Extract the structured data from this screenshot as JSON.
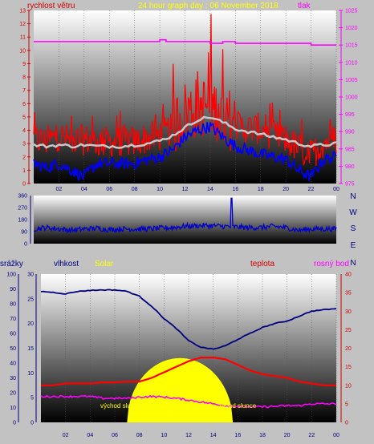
{
  "header": {
    "title": "24 hour graph day : 06 November 2018",
    "left_label": "rychlost větru",
    "right_label": "tlak"
  },
  "panel3_labels": {
    "rain": "srážky",
    "humidity": "vlhkost",
    "solar": "Solar",
    "temperature": "teplota",
    "dewpoint": "rosný bod",
    "sunrise": "východ slunce",
    "sunset": "západ slunce"
  },
  "colors": {
    "background": "#c2c2c2",
    "plot_top": "#ffffff",
    "plot_bottom": "#000000",
    "wind": "#ff0000",
    "wind_avg": "#c0c0c0",
    "direction": "#0000cc",
    "pressure": "#ff00ff",
    "humidity": "#000080",
    "temperature": "#ff0000",
    "dewpoint": "#ff00ff",
    "solar": "#ffff00",
    "title": "#ffff00"
  },
  "chart_data": [
    {
      "type": "line",
      "x_ticks": [
        "02",
        "04",
        "06",
        "08",
        "10",
        "12",
        "14",
        "16",
        "18",
        "20",
        "22",
        "00"
      ],
      "y_left_ticks": [
        "0",
        "1",
        "2",
        "3",
        "4",
        "5",
        "6",
        "7",
        "8",
        "9",
        "10",
        "11",
        "12",
        "13"
      ],
      "y_right_ticks": [
        "975",
        "980",
        "985",
        "990",
        "995",
        "1000",
        "1005",
        "1010",
        "1015",
        "1020",
        "1025"
      ],
      "ylim_left": [
        0,
        13
      ],
      "ylim_right": [
        975,
        1025
      ],
      "series": [
        {
          "name": "rychlost větru",
          "axis": "left",
          "style": "spiky",
          "x": [
            0,
            1,
            2,
            3,
            4,
            5,
            6,
            7,
            8,
            9,
            10,
            11,
            12,
            13,
            14,
            15,
            16,
            17,
            18,
            19,
            20,
            21,
            22,
            23,
            24
          ],
          "values": [
            3.2,
            3.0,
            3.5,
            3.0,
            3.2,
            3.0,
            3.0,
            3.1,
            3.0,
            3.3,
            3.5,
            4.0,
            5.2,
            5.5,
            5.6,
            5.0,
            4.3,
            4.0,
            4.0,
            3.5,
            3.2,
            2.5,
            2.0,
            3.0,
            3.2
          ]
        },
        {
          "name": "average",
          "axis": "left",
          "style": "smooth",
          "x": [
            0,
            1,
            2,
            3,
            4,
            5,
            6,
            7,
            8,
            9,
            10,
            11,
            12,
            13,
            14,
            15,
            16,
            17,
            18,
            19,
            20,
            21,
            22,
            23,
            24
          ],
          "values": [
            2.9,
            2.8,
            2.9,
            2.8,
            2.9,
            2.8,
            2.8,
            2.8,
            2.9,
            3.0,
            3.2,
            3.6,
            4.2,
            4.8,
            5.0,
            4.6,
            4.1,
            3.9,
            3.7,
            3.5,
            3.3,
            3.0,
            2.8,
            2.9,
            3.0
          ]
        },
        {
          "name": "gust",
          "axis": "left",
          "style": "lower",
          "x": [
            0,
            1,
            2,
            3,
            4,
            5,
            6,
            7,
            8,
            9,
            10,
            11,
            12,
            13,
            14,
            15,
            16,
            17,
            18,
            19,
            20,
            21,
            22,
            23,
            24
          ],
          "values": [
            1.5,
            1.2,
            1.5,
            1.0,
            0.5,
            1.5,
            1.5,
            1.5,
            1.5,
            1.8,
            2.0,
            2.5,
            3.5,
            4.0,
            4.3,
            3.5,
            2.8,
            2.5,
            2.2,
            2.0,
            1.8,
            1.0,
            0.5,
            1.8,
            2.0
          ]
        },
        {
          "name": "tlak",
          "axis": "right",
          "style": "step",
          "x": [
            0,
            2,
            4,
            6,
            8,
            9,
            10,
            10.5,
            11,
            12,
            13,
            14,
            15,
            16,
            18,
            20,
            22,
            23,
            24
          ],
          "values": [
            1016,
            1016,
            1016,
            1016,
            1016,
            1016,
            1016.5,
            1016,
            1016,
            1016,
            1016,
            1015.5,
            1016,
            1015.5,
            1015.5,
            1015.5,
            1015,
            1015,
            1015
          ]
        }
      ]
    },
    {
      "type": "line",
      "x_ticks": [],
      "y_left_ticks": [
        "0",
        "90",
        "180",
        "270",
        "360"
      ],
      "y_right_labels": [
        "N",
        "W",
        "S",
        "E",
        "N"
      ],
      "ylim": [
        0,
        360
      ],
      "series": [
        {
          "name": "direction",
          "style": "noisy",
          "x": [
            0,
            1,
            2,
            3,
            4,
            5,
            6,
            7,
            8,
            9,
            10,
            11,
            12,
            13,
            14,
            15,
            16,
            17,
            18,
            19,
            20,
            21,
            22,
            23,
            24
          ],
          "values": [
            110,
            120,
            110,
            100,
            110,
            115,
            105,
            110,
            110,
            110,
            115,
            120,
            130,
            135,
            135,
            130,
            125,
            120,
            120,
            130,
            120,
            100,
            110,
            110,
            110
          ]
        }
      ]
    },
    {
      "type": "line",
      "x_ticks": [
        "02",
        "04",
        "06",
        "08",
        "10",
        "12",
        "14",
        "16",
        "18",
        "20",
        "22",
        "00"
      ],
      "y_rain_ticks": [
        "0",
        "10",
        "20",
        "30",
        "40",
        "50",
        "60",
        "70",
        "80",
        "90",
        "100"
      ],
      "y_humidity_ticks": [
        "0",
        "5",
        "10",
        "15",
        "20",
        "25",
        "30"
      ],
      "y_right_ticks": [
        "0",
        "5",
        "10",
        "15",
        "20",
        "25",
        "30",
        "35",
        "40"
      ],
      "ylim_rain": [
        0,
        100
      ],
      "ylim_humidity": [
        0,
        30
      ],
      "ylim_right": [
        0,
        40
      ],
      "series": [
        {
          "name": "vlhkost",
          "axis": "humidity",
          "style": "step",
          "x": [
            0,
            1,
            2,
            3,
            4,
            5,
            6,
            7,
            8,
            9,
            10,
            11,
            12,
            13,
            14,
            15,
            16,
            17,
            18,
            19,
            20,
            21,
            22,
            23,
            24
          ],
          "values": [
            26.5,
            26.3,
            26.0,
            26.5,
            26.7,
            26.8,
            26.8,
            26.5,
            25.5,
            23.5,
            21.0,
            19.0,
            16.5,
            15.2,
            14.8,
            15.5,
            16.8,
            18.0,
            19.2,
            20.0,
            20.5,
            21.5,
            22.5,
            22.8,
            23.0
          ]
        },
        {
          "name": "teplota",
          "axis": "right",
          "style": "smooth",
          "x": [
            0,
            1,
            2,
            3,
            4,
            5,
            6,
            7,
            8,
            9,
            10,
            11,
            12,
            13,
            14,
            15,
            16,
            17,
            18,
            19,
            20,
            21,
            22,
            23,
            24
          ],
          "values": [
            10,
            10,
            10.5,
            10.5,
            10.5,
            10.8,
            10.8,
            11,
            11,
            12,
            13.5,
            15,
            16.5,
            17.5,
            17.5,
            17,
            15.5,
            14,
            13,
            12.5,
            12,
            11,
            10.5,
            10,
            10
          ]
        },
        {
          "name": "rosný bod",
          "axis": "right",
          "style": "noisy",
          "x": [
            0,
            1,
            2,
            3,
            4,
            5,
            6,
            7,
            8,
            9,
            10,
            11,
            12,
            13,
            14,
            15,
            16,
            17,
            18,
            19,
            20,
            21,
            22,
            23,
            24
          ],
          "values": [
            7,
            7,
            7,
            7,
            7,
            6.5,
            6.5,
            6.5,
            6.8,
            7,
            6.8,
            6.5,
            6,
            5.5,
            5,
            4.5,
            4.3,
            4.2,
            4.2,
            4.3,
            4.5,
            4.5,
            5,
            5,
            5
          ]
        },
        {
          "name": "Solar",
          "style": "area",
          "peak_hour": 11.3,
          "start_hour": 7.0,
          "end_hour": 15.6,
          "peak_value": 13
        }
      ]
    }
  ]
}
